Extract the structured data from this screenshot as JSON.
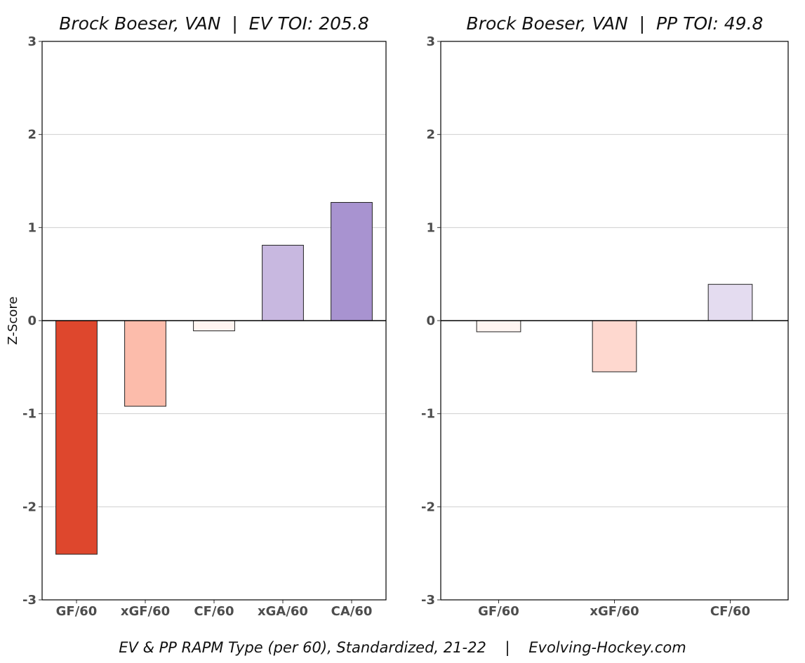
{
  "footer": {
    "caption": "EV & PP RAPM Type (per 60), Standardized, 21-22    |    Evolving-Hockey.com"
  },
  "y_axis_label": "Z-Score",
  "chart_data": [
    {
      "type": "bar",
      "title": "Brock Boeser, VAN  |  EV TOI: 205.8",
      "ylabel": "Z-Score",
      "ylim": [
        -3,
        3
      ],
      "yticks": [
        3,
        2,
        1,
        0,
        -1,
        -2,
        -3
      ],
      "grid": true,
      "categories": [
        "GF/60",
        "xGF/60",
        "CF/60",
        "xGA/60",
        "CA/60"
      ],
      "values": [
        -2.51,
        -0.92,
        -0.11,
        0.81,
        1.27
      ],
      "colors": [
        "#de472d",
        "#fcbcab",
        "#fff5f1",
        "#c8b8e0",
        "#a893d0"
      ]
    },
    {
      "type": "bar",
      "title": "Brock Boeser, VAN  |  PP TOI: 49.8",
      "ylim": [
        -3,
        3
      ],
      "yticks": [
        3,
        2,
        1,
        0,
        -1,
        -2,
        -3
      ],
      "grid": true,
      "categories": [
        "GF/60",
        "xGF/60",
        "CF/60"
      ],
      "values": [
        -0.12,
        -0.55,
        0.39
      ],
      "colors": [
        "#fff5f1",
        "#fed8cf",
        "#e4dcf0"
      ]
    }
  ]
}
